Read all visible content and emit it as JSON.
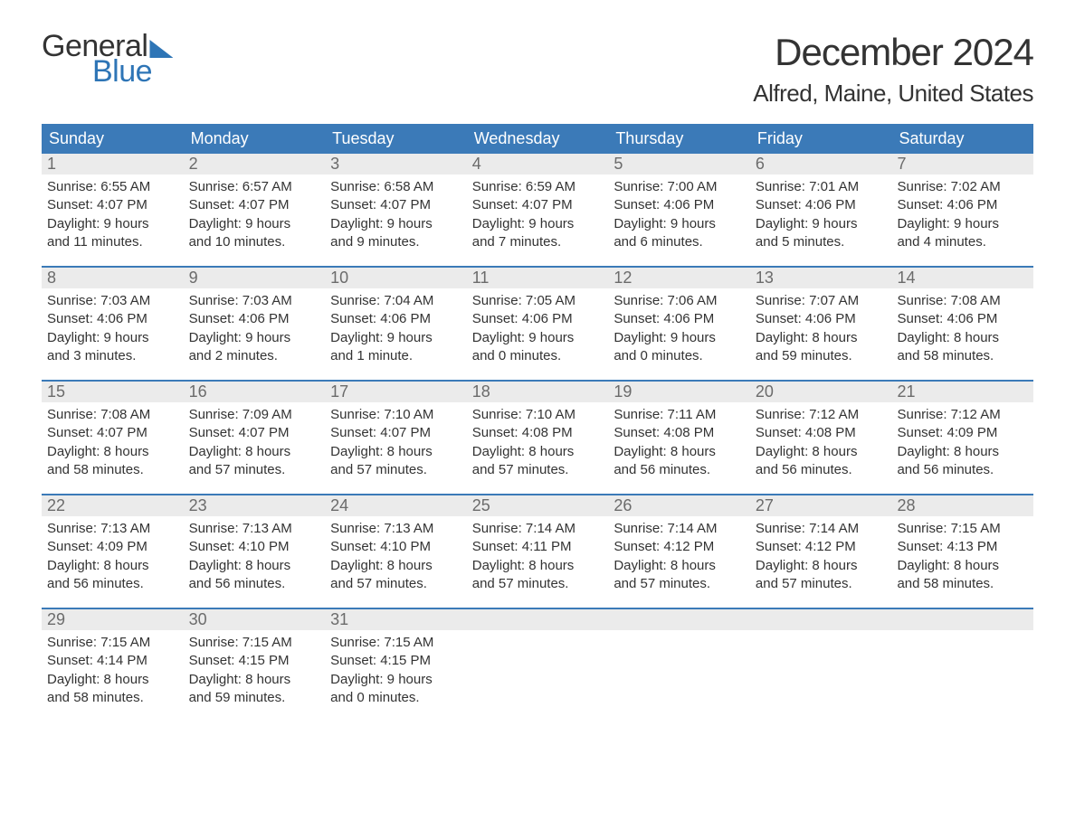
{
  "logo": {
    "text1": "General",
    "text2": "Blue"
  },
  "header": {
    "month_title": "December 2024",
    "location": "Alfred, Maine, United States"
  },
  "colors": {
    "brand_blue": "#2e75b6",
    "header_blue": "#3b7ab8",
    "row_gray": "#ebebeb",
    "text": "#333333",
    "daynum": "#6b6b6b",
    "background": "#ffffff"
  },
  "typography": {
    "month_title_fontsize": 42,
    "location_fontsize": 26,
    "dow_fontsize": 18,
    "daynum_fontsize": 18,
    "body_fontsize": 15
  },
  "days_of_week": [
    "Sunday",
    "Monday",
    "Tuesday",
    "Wednesday",
    "Thursday",
    "Friday",
    "Saturday"
  ],
  "weeks": [
    [
      {
        "n": "1",
        "sunrise": "Sunrise: 6:55 AM",
        "sunset": "Sunset: 4:07 PM",
        "d1": "Daylight: 9 hours",
        "d2": "and 11 minutes."
      },
      {
        "n": "2",
        "sunrise": "Sunrise: 6:57 AM",
        "sunset": "Sunset: 4:07 PM",
        "d1": "Daylight: 9 hours",
        "d2": "and 10 minutes."
      },
      {
        "n": "3",
        "sunrise": "Sunrise: 6:58 AM",
        "sunset": "Sunset: 4:07 PM",
        "d1": "Daylight: 9 hours",
        "d2": "and 9 minutes."
      },
      {
        "n": "4",
        "sunrise": "Sunrise: 6:59 AM",
        "sunset": "Sunset: 4:07 PM",
        "d1": "Daylight: 9 hours",
        "d2": "and 7 minutes."
      },
      {
        "n": "5",
        "sunrise": "Sunrise: 7:00 AM",
        "sunset": "Sunset: 4:06 PM",
        "d1": "Daylight: 9 hours",
        "d2": "and 6 minutes."
      },
      {
        "n": "6",
        "sunrise": "Sunrise: 7:01 AM",
        "sunset": "Sunset: 4:06 PM",
        "d1": "Daylight: 9 hours",
        "d2": "and 5 minutes."
      },
      {
        "n": "7",
        "sunrise": "Sunrise: 7:02 AM",
        "sunset": "Sunset: 4:06 PM",
        "d1": "Daylight: 9 hours",
        "d2": "and 4 minutes."
      }
    ],
    [
      {
        "n": "8",
        "sunrise": "Sunrise: 7:03 AM",
        "sunset": "Sunset: 4:06 PM",
        "d1": "Daylight: 9 hours",
        "d2": "and 3 minutes."
      },
      {
        "n": "9",
        "sunrise": "Sunrise: 7:03 AM",
        "sunset": "Sunset: 4:06 PM",
        "d1": "Daylight: 9 hours",
        "d2": "and 2 minutes."
      },
      {
        "n": "10",
        "sunrise": "Sunrise: 7:04 AM",
        "sunset": "Sunset: 4:06 PM",
        "d1": "Daylight: 9 hours",
        "d2": "and 1 minute."
      },
      {
        "n": "11",
        "sunrise": "Sunrise: 7:05 AM",
        "sunset": "Sunset: 4:06 PM",
        "d1": "Daylight: 9 hours",
        "d2": "and 0 minutes."
      },
      {
        "n": "12",
        "sunrise": "Sunrise: 7:06 AM",
        "sunset": "Sunset: 4:06 PM",
        "d1": "Daylight: 9 hours",
        "d2": "and 0 minutes."
      },
      {
        "n": "13",
        "sunrise": "Sunrise: 7:07 AM",
        "sunset": "Sunset: 4:06 PM",
        "d1": "Daylight: 8 hours",
        "d2": "and 59 minutes."
      },
      {
        "n": "14",
        "sunrise": "Sunrise: 7:08 AM",
        "sunset": "Sunset: 4:06 PM",
        "d1": "Daylight: 8 hours",
        "d2": "and 58 minutes."
      }
    ],
    [
      {
        "n": "15",
        "sunrise": "Sunrise: 7:08 AM",
        "sunset": "Sunset: 4:07 PM",
        "d1": "Daylight: 8 hours",
        "d2": "and 58 minutes."
      },
      {
        "n": "16",
        "sunrise": "Sunrise: 7:09 AM",
        "sunset": "Sunset: 4:07 PM",
        "d1": "Daylight: 8 hours",
        "d2": "and 57 minutes."
      },
      {
        "n": "17",
        "sunrise": "Sunrise: 7:10 AM",
        "sunset": "Sunset: 4:07 PM",
        "d1": "Daylight: 8 hours",
        "d2": "and 57 minutes."
      },
      {
        "n": "18",
        "sunrise": "Sunrise: 7:10 AM",
        "sunset": "Sunset: 4:08 PM",
        "d1": "Daylight: 8 hours",
        "d2": "and 57 minutes."
      },
      {
        "n": "19",
        "sunrise": "Sunrise: 7:11 AM",
        "sunset": "Sunset: 4:08 PM",
        "d1": "Daylight: 8 hours",
        "d2": "and 56 minutes."
      },
      {
        "n": "20",
        "sunrise": "Sunrise: 7:12 AM",
        "sunset": "Sunset: 4:08 PM",
        "d1": "Daylight: 8 hours",
        "d2": "and 56 minutes."
      },
      {
        "n": "21",
        "sunrise": "Sunrise: 7:12 AM",
        "sunset": "Sunset: 4:09 PM",
        "d1": "Daylight: 8 hours",
        "d2": "and 56 minutes."
      }
    ],
    [
      {
        "n": "22",
        "sunrise": "Sunrise: 7:13 AM",
        "sunset": "Sunset: 4:09 PM",
        "d1": "Daylight: 8 hours",
        "d2": "and 56 minutes."
      },
      {
        "n": "23",
        "sunrise": "Sunrise: 7:13 AM",
        "sunset": "Sunset: 4:10 PM",
        "d1": "Daylight: 8 hours",
        "d2": "and 56 minutes."
      },
      {
        "n": "24",
        "sunrise": "Sunrise: 7:13 AM",
        "sunset": "Sunset: 4:10 PM",
        "d1": "Daylight: 8 hours",
        "d2": "and 57 minutes."
      },
      {
        "n": "25",
        "sunrise": "Sunrise: 7:14 AM",
        "sunset": "Sunset: 4:11 PM",
        "d1": "Daylight: 8 hours",
        "d2": "and 57 minutes."
      },
      {
        "n": "26",
        "sunrise": "Sunrise: 7:14 AM",
        "sunset": "Sunset: 4:12 PM",
        "d1": "Daylight: 8 hours",
        "d2": "and 57 minutes."
      },
      {
        "n": "27",
        "sunrise": "Sunrise: 7:14 AM",
        "sunset": "Sunset: 4:12 PM",
        "d1": "Daylight: 8 hours",
        "d2": "and 57 minutes."
      },
      {
        "n": "28",
        "sunrise": "Sunrise: 7:15 AM",
        "sunset": "Sunset: 4:13 PM",
        "d1": "Daylight: 8 hours",
        "d2": "and 58 minutes."
      }
    ],
    [
      {
        "n": "29",
        "sunrise": "Sunrise: 7:15 AM",
        "sunset": "Sunset: 4:14 PM",
        "d1": "Daylight: 8 hours",
        "d2": "and 58 minutes."
      },
      {
        "n": "30",
        "sunrise": "Sunrise: 7:15 AM",
        "sunset": "Sunset: 4:15 PM",
        "d1": "Daylight: 8 hours",
        "d2": "and 59 minutes."
      },
      {
        "n": "31",
        "sunrise": "Sunrise: 7:15 AM",
        "sunset": "Sunset: 4:15 PM",
        "d1": "Daylight: 9 hours",
        "d2": "and 0 minutes."
      },
      {
        "empty": true
      },
      {
        "empty": true
      },
      {
        "empty": true
      },
      {
        "empty": true
      }
    ]
  ]
}
